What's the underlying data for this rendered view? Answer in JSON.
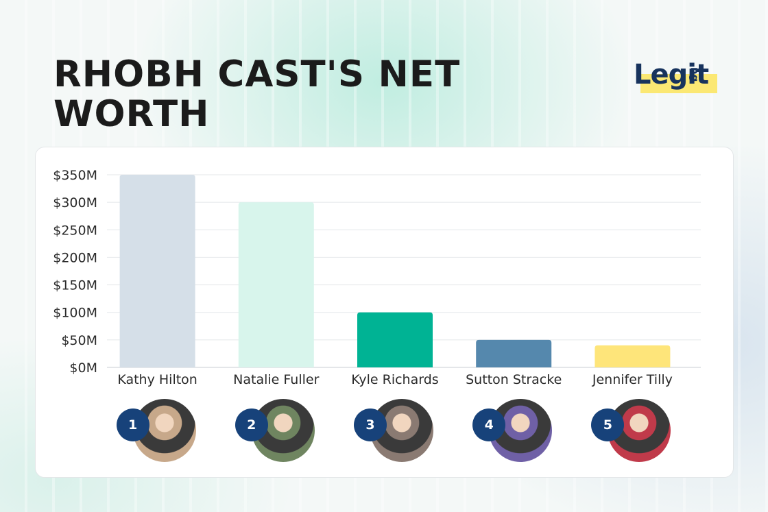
{
  "header": {
    "title": "RHOBH CAST'S NET WORTH",
    "logo_text": "Legit",
    "logo_suffix": "ng"
  },
  "chart_data": {
    "type": "bar",
    "categories": [
      "Kathy Hilton",
      "Natalie Fuller",
      "Kyle Richards",
      "Sutton Stracke",
      "Jennifer Tilly"
    ],
    "values": [
      350,
      300,
      100,
      50,
      40
    ],
    "unit_prefix": "$",
    "unit_suffix": "M",
    "ylim": [
      0,
      350
    ],
    "yticks": [
      "$0M",
      "$50M",
      "$100M",
      "$150M",
      "$200M",
      "$250M",
      "$300M",
      "$350M"
    ],
    "grid": true,
    "legend": "none",
    "bar_colors": [
      "#d5dfe8",
      "#d8f5ec",
      "#00b394",
      "#5588ad",
      "#fee57a"
    ],
    "ranks": [
      "1",
      "2",
      "3",
      "4",
      "5"
    ],
    "photo_icons": [
      "person-photo-icon",
      "person-photo-icon",
      "person-photo-icon",
      "person-photo-icon",
      "person-photo-icon"
    ]
  }
}
